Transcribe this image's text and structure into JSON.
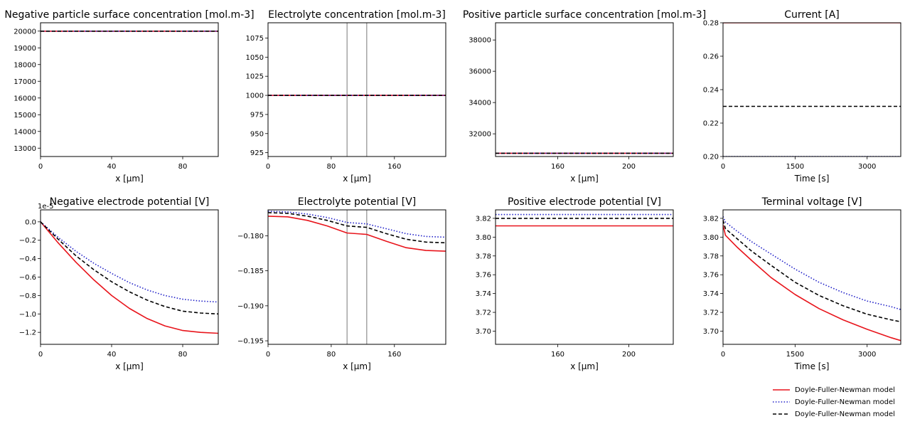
{
  "legend": [
    {
      "label": "Doyle-Fuller-Newman model",
      "color": "#e8141b",
      "style": "solid"
    },
    {
      "label": "Doyle-Fuller-Newman model",
      "color": "#1f1fc8",
      "style": "dotted"
    },
    {
      "label": "Doyle-Fuller-Newman model",
      "color": "#000000",
      "style": "dashed"
    }
  ],
  "chart_data": [
    {
      "type": "line",
      "title": "Negative particle surface concentration [mol.m-3]",
      "xlabel": "x [μm]",
      "ylabel": "",
      "xlim": [
        0,
        100
      ],
      "ylim": [
        12500,
        20500
      ],
      "xticks": [
        0,
        40,
        80
      ],
      "yticks": [
        13000,
        14000,
        15000,
        16000,
        17000,
        18000,
        19000,
        20000
      ],
      "xticklabels": [
        "0",
        "40",
        "80"
      ],
      "yticklabels": [
        "13000",
        "14000",
        "15000",
        "16000",
        "17000",
        "18000",
        "19000",
        "20000"
      ],
      "vlines": [],
      "series": [
        {
          "name": "Doyle-Fuller-Newman model",
          "color": "#e8141b",
          "style": "solid",
          "x": [
            0,
            100
          ],
          "y": [
            20000,
            20000
          ]
        },
        {
          "name": "Doyle-Fuller-Newman model",
          "color": "#1f1fc8",
          "style": "dotted",
          "x": [
            0,
            100
          ],
          "y": [
            20000,
            20000
          ]
        },
        {
          "name": "Doyle-Fuller-Newman model",
          "color": "#000000",
          "style": "dashed",
          "x": [
            0,
            100
          ],
          "y": [
            20000,
            20000
          ]
        }
      ]
    },
    {
      "type": "line",
      "title": "Electrolyte concentration [mol.m-3]",
      "xlabel": "x [μm]",
      "ylabel": "",
      "xlim": [
        0,
        225
      ],
      "ylim": [
        920,
        1095
      ],
      "xticks": [
        0,
        80,
        160
      ],
      "yticks": [
        925,
        950,
        975,
        1000,
        1025,
        1050,
        1075
      ],
      "xticklabels": [
        "0",
        "80",
        "160"
      ],
      "yticklabels": [
        "925",
        "950",
        "975",
        "1000",
        "1025",
        "1050",
        "1075"
      ],
      "vlines": [
        100,
        125
      ],
      "series": [
        {
          "name": "Doyle-Fuller-Newman model",
          "color": "#e8141b",
          "style": "solid",
          "x": [
            0,
            225
          ],
          "y": [
            1000,
            1000
          ]
        },
        {
          "name": "Doyle-Fuller-Newman model",
          "color": "#1f1fc8",
          "style": "dotted",
          "x": [
            0,
            225
          ],
          "y": [
            1000,
            1000
          ]
        },
        {
          "name": "Doyle-Fuller-Newman model",
          "color": "#000000",
          "style": "dashed",
          "x": [
            0,
            225
          ],
          "y": [
            1000,
            1000
          ]
        }
      ]
    },
    {
      "type": "line",
      "title": "Positive particle surface concentration [mol.m-3]",
      "xlabel": "x [μm]",
      "ylabel": "",
      "xlim": [
        125,
        225
      ],
      "ylim": [
        30550,
        39100
      ],
      "xticks": [
        160,
        200
      ],
      "yticks": [
        32000,
        34000,
        36000,
        38000
      ],
      "xticklabels": [
        "160",
        "200"
      ],
      "yticklabels": [
        "32000",
        "34000",
        "36000",
        "38000"
      ],
      "vlines": [],
      "series": [
        {
          "name": "Doyle-Fuller-Newman model",
          "color": "#e8141b",
          "style": "solid",
          "x": [
            125,
            225
          ],
          "y": [
            30760,
            30760
          ]
        },
        {
          "name": "Doyle-Fuller-Newman model",
          "color": "#1f1fc8",
          "style": "dotted",
          "x": [
            125,
            225
          ],
          "y": [
            30760,
            30760
          ]
        },
        {
          "name": "Doyle-Fuller-Newman model",
          "color": "#000000",
          "style": "dashed",
          "x": [
            125,
            225
          ],
          "y": [
            30760,
            30760
          ]
        }
      ]
    },
    {
      "type": "line",
      "title": "Current [A]",
      "xlabel": "Time [s]",
      "ylabel": "",
      "xlim": [
        0,
        3700
      ],
      "ylim": [
        0.2,
        0.28
      ],
      "xticks": [
        0,
        1500,
        3000
      ],
      "yticks": [
        0.2,
        0.22,
        0.24,
        0.26,
        0.28
      ],
      "xticklabels": [
        "0",
        "1500",
        "3000"
      ],
      "yticklabels": [
        "0.20",
        "0.22",
        "0.24",
        "0.26",
        "0.28"
      ],
      "vlines": [],
      "series": [
        {
          "name": "Doyle-Fuller-Newman model",
          "color": "#e8141b",
          "style": "solid",
          "x": [
            0,
            3700
          ],
          "y": [
            0.28,
            0.28
          ]
        },
        {
          "name": "Doyle-Fuller-Newman model",
          "color": "#1f1fc8",
          "style": "dotted",
          "x": [
            0,
            3700
          ],
          "y": [
            0.2,
            0.2
          ]
        },
        {
          "name": "Doyle-Fuller-Newman model",
          "color": "#000000",
          "style": "dashed",
          "x": [
            0,
            3700
          ],
          "y": [
            0.23,
            0.23
          ]
        }
      ]
    },
    {
      "type": "line",
      "title": "Negative electrode potential [V]",
      "xlabel": "x [μm]",
      "ylabel": "",
      "offset_text": "1e-5",
      "xlim": [
        0,
        100
      ],
      "ylim": [
        -1.33,
        0.13
      ],
      "xticks": [
        0,
        40,
        80
      ],
      "yticks": [
        -1.2,
        -1.0,
        -0.8,
        -0.6,
        -0.4,
        -0.2,
        0.0
      ],
      "xticklabels": [
        "0",
        "40",
        "80"
      ],
      "yticklabels": [
        "−1.2",
        "−1.0",
        "−0.8",
        "−0.6",
        "−0.4",
        "−0.2",
        "0.0"
      ],
      "vlines": [],
      "series": [
        {
          "name": "Doyle-Fuller-Newman model",
          "color": "#e8141b",
          "style": "solid",
          "x": [
            0,
            10,
            20,
            30,
            40,
            50,
            60,
            70,
            80,
            90,
            100
          ],
          "y": [
            0,
            -0.23,
            -0.44,
            -0.63,
            -0.8,
            -0.94,
            -1.05,
            -1.13,
            -1.18,
            -1.2,
            -1.21
          ]
        },
        {
          "name": "Doyle-Fuller-Newman model",
          "color": "#1f1fc8",
          "style": "dotted",
          "x": [
            0,
            10,
            20,
            30,
            40,
            50,
            60,
            70,
            80,
            90,
            100
          ],
          "y": [
            0,
            -0.17,
            -0.32,
            -0.45,
            -0.56,
            -0.66,
            -0.74,
            -0.8,
            -0.84,
            -0.86,
            -0.87
          ]
        },
        {
          "name": "Doyle-Fuller-Newman model",
          "color": "#000000",
          "style": "dashed",
          "x": [
            0,
            10,
            20,
            30,
            40,
            50,
            60,
            70,
            80,
            90,
            100
          ],
          "y": [
            0,
            -0.19,
            -0.37,
            -0.52,
            -0.65,
            -0.76,
            -0.85,
            -0.92,
            -0.97,
            -0.99,
            -1.0
          ]
        }
      ]
    },
    {
      "type": "line",
      "title": "Electrolyte potential [V]",
      "xlabel": "x [μm]",
      "ylabel": "",
      "xlim": [
        0,
        225
      ],
      "ylim": [
        -0.1955,
        -0.1763
      ],
      "xticks": [
        0,
        80,
        160
      ],
      "yticks": [
        -0.195,
        -0.19,
        -0.185,
        -0.18
      ],
      "xticklabels": [
        "0",
        "80",
        "160"
      ],
      "yticklabels": [
        "−0.195",
        "−0.190",
        "−0.185",
        "−0.180"
      ],
      "vlines": [
        100,
        125
      ],
      "series": [
        {
          "name": "Doyle-Fuller-Newman model",
          "color": "#e8141b",
          "style": "solid",
          "x": [
            0,
            25,
            50,
            75,
            100,
            125,
            150,
            175,
            200,
            225
          ],
          "y": [
            -0.1772,
            -0.1773,
            -0.1778,
            -0.1786,
            -0.1796,
            -0.1798,
            -0.1808,
            -0.1817,
            -0.1821,
            -0.1822
          ]
        },
        {
          "name": "Doyle-Fuller-Newman model",
          "color": "#1f1fc8",
          "style": "dotted",
          "x": [
            0,
            25,
            50,
            75,
            100,
            125,
            150,
            175,
            200,
            225
          ],
          "y": [
            -0.1765,
            -0.1766,
            -0.1769,
            -0.1774,
            -0.1781,
            -0.1783,
            -0.179,
            -0.1797,
            -0.1801,
            -0.1802
          ]
        },
        {
          "name": "Doyle-Fuller-Newman model",
          "color": "#000000",
          "style": "dashed",
          "x": [
            0,
            25,
            50,
            75,
            100,
            125,
            150,
            175,
            200,
            225
          ],
          "y": [
            -0.1767,
            -0.1768,
            -0.1772,
            -0.1778,
            -0.1786,
            -0.1788,
            -0.1797,
            -0.1805,
            -0.1809,
            -0.181
          ]
        }
      ]
    },
    {
      "type": "line",
      "title": "Positive electrode potential [V]",
      "xlabel": "x [μm]",
      "ylabel": "",
      "xlim": [
        125,
        225
      ],
      "ylim": [
        3.686,
        3.829
      ],
      "xticks": [
        160,
        200
      ],
      "yticks": [
        3.7,
        3.72,
        3.74,
        3.76,
        3.78,
        3.8,
        3.82
      ],
      "xticklabels": [
        "160",
        "200"
      ],
      "yticklabels": [
        "3.70",
        "3.72",
        "3.74",
        "3.76",
        "3.78",
        "3.80",
        "3.82"
      ],
      "vlines": [],
      "series": [
        {
          "name": "Doyle-Fuller-Newman model",
          "color": "#e8141b",
          "style": "solid",
          "x": [
            125,
            225
          ],
          "y": [
            3.812,
            3.812
          ]
        },
        {
          "name": "Doyle-Fuller-Newman model",
          "color": "#1f1fc8",
          "style": "dotted",
          "x": [
            125,
            225
          ],
          "y": [
            3.824,
            3.824
          ]
        },
        {
          "name": "Doyle-Fuller-Newman model",
          "color": "#000000",
          "style": "dashed",
          "x": [
            125,
            225
          ],
          "y": [
            3.82,
            3.82
          ]
        }
      ]
    },
    {
      "type": "line",
      "title": "Terminal voltage [V]",
      "xlabel": "Time [s]",
      "ylabel": "",
      "xlim": [
        0,
        3700
      ],
      "ylim": [
        3.686,
        3.829
      ],
      "xticks": [
        0,
        1500,
        3000
      ],
      "yticks": [
        3.7,
        3.72,
        3.74,
        3.76,
        3.78,
        3.8,
        3.82
      ],
      "xticklabels": [
        "0",
        "1500",
        "3000"
      ],
      "yticklabels": [
        "3.70",
        "3.72",
        "3.74",
        "3.76",
        "3.78",
        "3.80",
        "3.82"
      ],
      "vlines": [],
      "series": [
        {
          "name": "Doyle-Fuller-Newman model",
          "color": "#e8141b",
          "style": "solid",
          "x": [
            0,
            50,
            300,
            600,
            1000,
            1500,
            2000,
            2500,
            3000,
            3500,
            3700
          ],
          "y": [
            3.813,
            3.802,
            3.789,
            3.775,
            3.757,
            3.739,
            3.724,
            3.712,
            3.702,
            3.693,
            3.69
          ]
        },
        {
          "name": "Doyle-Fuller-Newman model",
          "color": "#1f1fc8",
          "style": "dotted",
          "x": [
            0,
            50,
            300,
            600,
            1000,
            1500,
            2000,
            2500,
            3000,
            3500,
            3700
          ],
          "y": [
            3.822,
            3.816,
            3.806,
            3.795,
            3.782,
            3.766,
            3.752,
            3.741,
            3.732,
            3.726,
            3.723
          ]
        },
        {
          "name": "Doyle-Fuller-Newman model",
          "color": "#000000",
          "style": "dashed",
          "x": [
            0,
            50,
            300,
            600,
            1000,
            1500,
            2000,
            2500,
            3000,
            3500,
            3700
          ],
          "y": [
            3.818,
            3.809,
            3.798,
            3.785,
            3.77,
            3.752,
            3.738,
            3.727,
            3.718,
            3.712,
            3.71
          ]
        }
      ]
    }
  ]
}
